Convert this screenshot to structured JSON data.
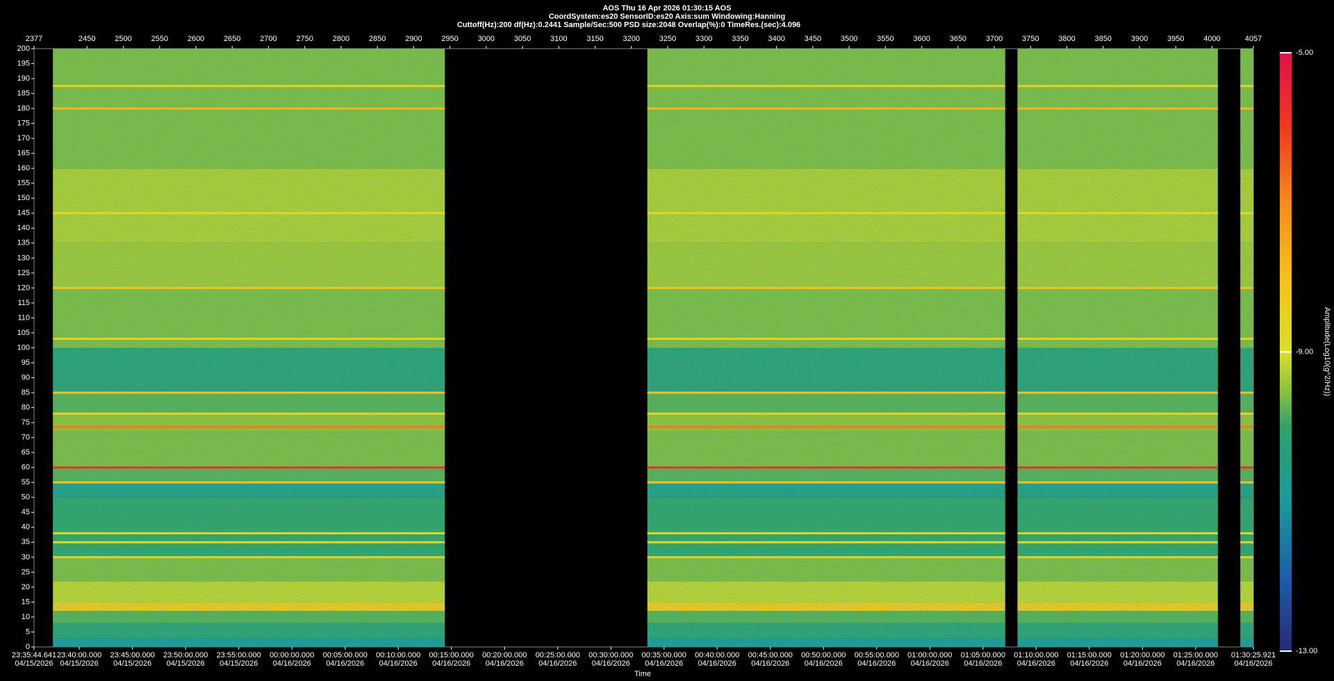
{
  "chart_data": {
    "type": "spectrogram",
    "title": "AOS  Thu 16 Apr 2026 01:30:15  AOS",
    "subtitle": "CoordSystem:es20    SensorID:es20     Axis:sum     Windowing:Hanning",
    "settings_line": "Cuttoff(Hz):200       df(Hz):0.2441       Sample/Sec:500       PSD size:2048       Overlap(%):0       TimeRes.(sec):4.096",
    "x_label": "Time",
    "colorbar_label": "Amplitude(Log10(g^2/Hz))",
    "xlim": [
      2377,
      4057
    ],
    "xticks": [
      2377,
      2450,
      2500,
      2550,
      2600,
      2650,
      2700,
      2750,
      2800,
      2850,
      2900,
      2950,
      3000,
      3050,
      3100,
      3150,
      3200,
      3250,
      3300,
      3350,
      3400,
      3450,
      3500,
      3550,
      3600,
      3650,
      3700,
      3750,
      3800,
      3850,
      3900,
      3950,
      4000,
      4057
    ],
    "x2ticks": [
      {
        "value": 2377,
        "label": "23:35:44.641",
        "date": "04/15/2026"
      },
      {
        "value": 2439.3,
        "label": "23:40:00.000",
        "date": "04/15/2026"
      },
      {
        "value": 2512.6,
        "label": "23:45:00.000",
        "date": "04/15/2026"
      },
      {
        "value": 2585.8,
        "label": "23:50:00.000",
        "date": "04/15/2026"
      },
      {
        "value": 2659.1,
        "label": "23:55:00.000",
        "date": "04/15/2026"
      },
      {
        "value": 2732.3,
        "label": "00:00:00.000",
        "date": "04/16/2026"
      },
      {
        "value": 2805.6,
        "label": "00:05:00.000",
        "date": "04/16/2026"
      },
      {
        "value": 2878.8,
        "label": "00:10:00.000",
        "date": "04/16/2026"
      },
      {
        "value": 2952.0,
        "label": "00:15:00.000",
        "date": "04/16/2026"
      },
      {
        "value": 3025.3,
        "label": "00:20:00.000",
        "date": "04/16/2026"
      },
      {
        "value": 3098.5,
        "label": "00:25:00.000",
        "date": "04/16/2026"
      },
      {
        "value": 3171.8,
        "label": "00:30:00.000",
        "date": "04/16/2026"
      },
      {
        "value": 3245.0,
        "label": "00:35:00.000",
        "date": "04/16/2026"
      },
      {
        "value": 3318.2,
        "label": "00:40:00.000",
        "date": "04/16/2026"
      },
      {
        "value": 3391.5,
        "label": "00:45:00.000",
        "date": "04/16/2026"
      },
      {
        "value": 3464.7,
        "label": "00:50:00.000",
        "date": "04/16/2026"
      },
      {
        "value": 3538.0,
        "label": "00:55:00.000",
        "date": "04/16/2026"
      },
      {
        "value": 3611.2,
        "label": "01:00:00.000",
        "date": "04/16/2026"
      },
      {
        "value": 3684.5,
        "label": "01:05:00.000",
        "date": "04/16/2026"
      },
      {
        "value": 3757.7,
        "label": "01:10:00.000",
        "date": "04/16/2026"
      },
      {
        "value": 3830.9,
        "label": "01:15:00.000",
        "date": "04/16/2026"
      },
      {
        "value": 3904.2,
        "label": "01:20:00.000",
        "date": "04/16/2026"
      },
      {
        "value": 3977.4,
        "label": "01:25:00.000",
        "date": "04/16/2026"
      },
      {
        "value": 4057,
        "label": "01:30:25.921",
        "date": "04/16/2026"
      }
    ],
    "ylim": [
      0,
      200
    ],
    "yticks": [
      0,
      5,
      10,
      15,
      20,
      25,
      30,
      35,
      40,
      45,
      50,
      55,
      60,
      65,
      70,
      75,
      80,
      85,
      90,
      95,
      100,
      105,
      110,
      115,
      120,
      125,
      130,
      135,
      140,
      145,
      150,
      155,
      160,
      165,
      170,
      175,
      180,
      185,
      190,
      195,
      200
    ],
    "segments": [
      [
        2403,
        2943
      ],
      [
        3222,
        3715
      ],
      [
        3732,
        4008
      ],
      [
        4039,
        4057
      ]
    ],
    "freq_edges": [
      0,
      3,
      8,
      12,
      15,
      22,
      30,
      50,
      55,
      60,
      72,
      78,
      85,
      100,
      120,
      135,
      160,
      200
    ],
    "values": [
      -11,
      -10.2,
      -9.8,
      -8.3,
      -9.2,
      -9.6,
      -10.0,
      -10.6,
      -9.8,
      -9.6,
      -9.5,
      -9.8,
      -10.3,
      -9.6,
      -9.4,
      -9.3,
      -9.6
    ],
    "line_freqs": [
      187.5,
      180,
      145,
      120,
      103,
      85,
      78,
      73.5,
      60,
      55,
      38,
      35,
      30
    ],
    "line_values": [
      -8.5,
      -7.8,
      -8.6,
      -8,
      -8.5,
      -8,
      -8.5,
      -6.8,
      -5.8,
      -8,
      -8.7,
      -8.7,
      -8.5
    ],
    "clim": [
      -13,
      -5
    ],
    "cticks": [
      {
        "value": -5,
        "label": "-5.00"
      },
      {
        "value": -9,
        "label": "-9.00"
      },
      {
        "value": -13,
        "label": "-13.00"
      }
    ],
    "colorscale": [
      [
        -13,
        "#262a73"
      ],
      [
        -12,
        "#1b5fa8"
      ],
      [
        -11,
        "#1a9a9a"
      ],
      [
        -10,
        "#2ea36a"
      ],
      [
        -9.5,
        "#8fc23a"
      ],
      [
        -9,
        "#d8e02a"
      ],
      [
        -8,
        "#f5c21a"
      ],
      [
        -7,
        "#f58a1a"
      ],
      [
        -6,
        "#ee3a20"
      ],
      [
        -5,
        "#e0104a"
      ]
    ]
  }
}
